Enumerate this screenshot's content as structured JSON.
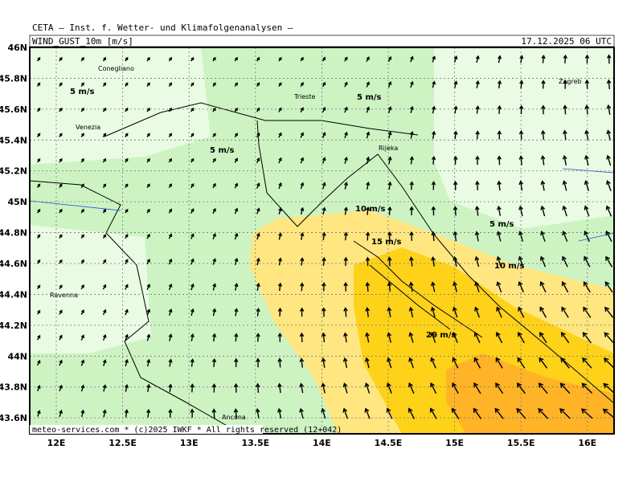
{
  "header": {
    "title": "CETA – Inst. f. Wetter- und Klimafolgenanalysen –",
    "field": "WIND_GUST_10m [m/s]",
    "time": "17.12.2025 06 UTC"
  },
  "lat_labels": [
    "46N",
    "45.8N",
    "45.6N",
    "45.4N",
    "45.2N",
    "45N",
    "44.8N",
    "44.6N",
    "44.4N",
    "44.2N",
    "44N",
    "43.8N",
    "43.6N"
  ],
  "lon_labels": [
    "12E",
    "12.5E",
    "13E",
    "13.5E",
    "14E",
    "14.5E",
    "15E",
    "15.5E",
    "16E"
  ],
  "cities": [
    "Conegliano",
    "Venezia",
    "Trieste",
    "Rijeka",
    "Zagreb",
    "Ravenna",
    "Ancona"
  ],
  "contour_labels": [
    "5 m/s",
    "5 m/s",
    "5 m/s",
    "5 m/s",
    "10 m/s",
    "15 m/s",
    "10 m/s",
    "20 m/s"
  ],
  "footer": "meteo-services.com * (c)2025 IWKF * All rights reserved (12+042)"
}
